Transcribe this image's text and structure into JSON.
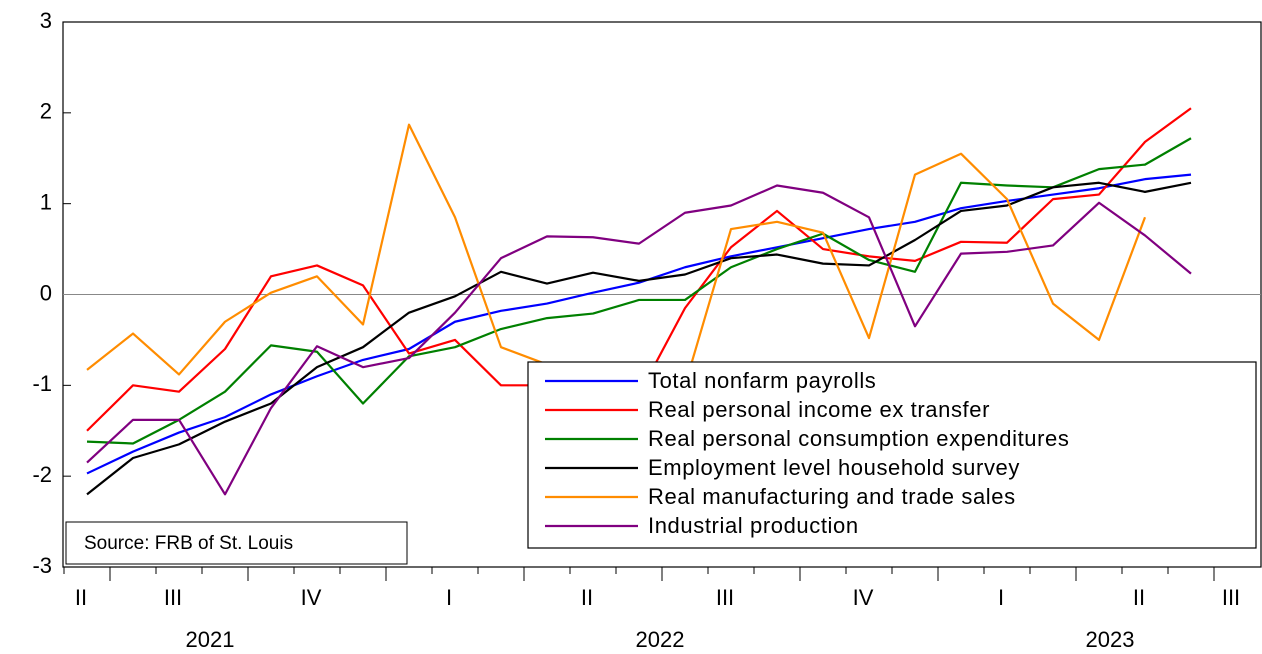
{
  "chart_data": {
    "type": "line",
    "categories": [
      "II",
      null,
      "III",
      null,
      null,
      "IV",
      null,
      null,
      "I",
      null,
      null,
      "II",
      null,
      null,
      "III",
      null,
      null,
      "IV",
      null,
      null,
      "I",
      null,
      null,
      "II",
      null,
      "III"
    ],
    "years": [
      "2021",
      "2022",
      "2023"
    ],
    "ylim": [
      -3,
      3
    ],
    "yticks": [
      -3,
      -2,
      -1,
      0,
      1,
      2,
      3
    ],
    "zero_line": true,
    "legend": "lower right",
    "source": "Source: FRB of St. Louis",
    "series": [
      {
        "name": "Total nonfarm payrolls",
        "color": "#0000ff",
        "values": [
          -1.97,
          -1.73,
          -1.52,
          -1.35,
          -1.1,
          -0.9,
          -0.72,
          -0.6,
          -0.3,
          -0.18,
          -0.1,
          0.02,
          0.13,
          0.3,
          0.42,
          0.52,
          0.62,
          0.72,
          0.8,
          0.95,
          1.03,
          1.1,
          1.17,
          1.27,
          1.32,
          null
        ]
      },
      {
        "name": "Real personal income ex transfer",
        "color": "#ff0000",
        "values": [
          -1.5,
          -1.0,
          -1.07,
          -0.6,
          0.2,
          0.32,
          0.1,
          -0.65,
          -0.5,
          -1.0,
          -1.0,
          -1.05,
          -1.1,
          -0.15,
          0.52,
          0.92,
          0.5,
          0.42,
          0.37,
          0.58,
          0.57,
          1.05,
          1.1,
          1.68,
          2.05,
          null
        ]
      },
      {
        "name": "Real personal consumption expenditures",
        "color": "#008000",
        "values": [
          -1.62,
          -1.64,
          -1.38,
          -1.07,
          -0.56,
          -0.63,
          -1.2,
          -0.68,
          -0.58,
          -0.38,
          -0.26,
          -0.21,
          -0.06,
          -0.06,
          0.3,
          0.5,
          0.67,
          0.38,
          0.25,
          1.23,
          1.2,
          1.18,
          1.38,
          1.43,
          1.72,
          null
        ]
      },
      {
        "name": "Employment level household survey",
        "color": "#000000",
        "values": [
          -2.2,
          -1.8,
          -1.65,
          -1.4,
          -1.2,
          -0.8,
          -0.58,
          -0.2,
          -0.02,
          0.25,
          0.12,
          0.24,
          0.15,
          0.22,
          0.4,
          0.44,
          0.34,
          0.32,
          0.6,
          0.92,
          0.98,
          1.18,
          1.23,
          1.13,
          1.23,
          null
        ]
      },
      {
        "name": "Real manufacturing and trade sales",
        "color": "#ff8c00",
        "values": [
          -0.83,
          -0.43,
          -0.88,
          -0.3,
          0.02,
          0.2,
          -0.33,
          1.87,
          0.85,
          -0.58,
          -0.77,
          -1.1,
          -1.3,
          -1.0,
          0.72,
          0.8,
          0.68,
          -0.48,
          1.32,
          1.55,
          1.05,
          -0.1,
          -0.5,
          0.85,
          null,
          null
        ]
      },
      {
        "name": "Industrial production",
        "color": "#800080",
        "values": [
          -1.85,
          -1.38,
          -1.38,
          -2.2,
          -1.25,
          -0.57,
          -0.8,
          -0.7,
          -0.2,
          0.4,
          0.64,
          0.63,
          0.56,
          0.9,
          0.98,
          1.2,
          1.12,
          0.85,
          -0.35,
          0.45,
          0.47,
          0.54,
          1.01,
          0.65,
          0.23,
          null
        ]
      }
    ]
  }
}
